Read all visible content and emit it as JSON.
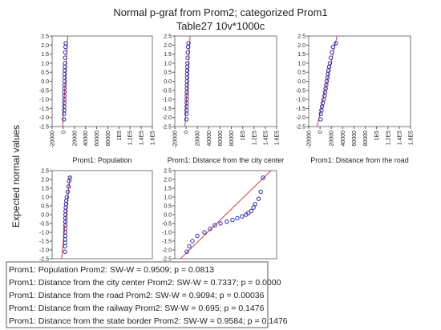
{
  "header": {
    "title": [
      "Normal p-graf from Prom2; categorized Prom1",
      "Table27 10v*1000c"
    ],
    "y_label": "Expected normal values"
  },
  "legend_box": {
    "lines": [
      "Prom1: Population   Prom2: SW-W = 0.9509; p = 0.0813",
      "Prom1: Distance from the city center   Prom2: SW-W = 0.7337; p = 0.0000",
      "Prom1: Distance from the road   Prom2: SW-W = 0.9094; p = 0.00036",
      "Prom1: Distance from the railway   Prom2: SW-W = 0.695; p = 0.1476",
      "Prom1: Distance from the state border   Prom2: SW-W = 0.9584; p = 0.1476"
    ]
  },
  "chart_data": [
    {
      "type": "scatter",
      "title": "Prom1: Population",
      "point_color": "#2a2aa8",
      "line_color": "#d04040",
      "x": [
        1200,
        1500,
        1700,
        1800,
        1900,
        2000,
        2100,
        2200,
        2300,
        2400,
        2500,
        2600,
        2700,
        2800,
        2900,
        3100,
        3300,
        3600,
        4000,
        4500
      ],
      "y": [
        -2.1,
        -1.8,
        -1.6,
        -1.4,
        -1.2,
        -1.0,
        -0.8,
        -0.6,
        -0.4,
        -0.2,
        0,
        0.2,
        0.4,
        0.6,
        0.8,
        1.0,
        1.3,
        1.6,
        1.9,
        2.1
      ],
      "fit": {
        "x": [
          -1000,
          8000
        ],
        "y": [
          -2.5,
          2.5
        ]
      },
      "xlim": [
        -20000,
        160000
      ],
      "ylim": [
        -2.5,
        2.5
      ],
      "xticks": [
        -20000,
        0,
        20000,
        40000,
        60000,
        80000,
        {
          "value": 100000,
          "label": "1E5"
        },
        {
          "value": 120000,
          "label": "1.2E5"
        },
        {
          "value": 140000,
          "label": "1.4E5"
        },
        {
          "value": 160000,
          "label": "1.6E5"
        }
      ],
      "yticks": [
        2.5,
        {
          "value": 2,
          "label": "2.0"
        },
        1.5,
        {
          "value": 1,
          "label": "1.0"
        },
        0.5,
        {
          "value": 0,
          "label": "0.0"
        },
        -0.5,
        {
          "value": -1,
          "label": "-1.0"
        },
        -1.5,
        {
          "value": -2,
          "label": "-2.0"
        },
        -2.5
      ]
    },
    {
      "type": "scatter",
      "title": "Prom1: Distance from the city center",
      "point_color": "#2a2aa8",
      "line_color": "#d04040",
      "x": [
        500,
        700,
        800,
        900,
        1000,
        1100,
        1200,
        1300,
        1400,
        1500,
        1600,
        1700,
        1800,
        2000,
        2200,
        2400,
        2700,
        3100,
        3600,
        4200
      ],
      "y": [
        -2.1,
        -1.8,
        -1.6,
        -1.4,
        -1.2,
        -1.0,
        -0.8,
        -0.6,
        -0.4,
        -0.2,
        0,
        0.2,
        0.4,
        0.6,
        0.8,
        1.0,
        1.3,
        1.6,
        1.9,
        2.1
      ],
      "fit": {
        "x": [
          -2000,
          7000
        ],
        "y": [
          -2.5,
          2.5
        ]
      },
      "xlim": [
        -20000,
        160000
      ],
      "ylim": [
        -2.5,
        2.5
      ],
      "xticks": [
        -20000,
        0,
        20000,
        40000,
        60000,
        80000,
        {
          "value": 100000,
          "label": "1E5"
        },
        {
          "value": 120000,
          "label": "1.2E5"
        },
        {
          "value": 140000,
          "label": "1.4E5"
        },
        {
          "value": 160000,
          "label": "1.6E5"
        }
      ],
      "yticks": [
        2.5,
        {
          "value": 2,
          "label": "2.0"
        },
        1.5,
        {
          "value": 1,
          "label": "1.0"
        },
        0.5,
        {
          "value": 0,
          "label": "0.0"
        },
        -0.5,
        {
          "value": -1,
          "label": "-1.0"
        },
        -1.5,
        {
          "value": -2,
          "label": "-2.0"
        },
        -2.5
      ]
    },
    {
      "type": "scatter",
      "title": "Prom1: Distance from the road",
      "point_color": "#2a2aa8",
      "line_color": "#d04040",
      "x": [
        1000,
        1500,
        2500,
        3500,
        5000,
        6500,
        8000,
        9000,
        10000,
        11000,
        12000,
        13000,
        14000,
        15000,
        16000,
        17500,
        19000,
        21000,
        23000,
        28000
      ],
      "y": [
        -2.1,
        -1.8,
        -1.6,
        -1.4,
        -1.2,
        -1.0,
        -0.8,
        -0.6,
        -0.4,
        -0.2,
        0,
        0.2,
        0.4,
        0.6,
        0.8,
        1.0,
        1.3,
        1.6,
        1.9,
        2.1
      ],
      "fit": {
        "x": [
          -5000,
          30000
        ],
        "y": [
          -2.5,
          2.5
        ]
      },
      "xlim": [
        -20000,
        160000
      ],
      "ylim": [
        -2.5,
        2.5
      ],
      "xticks": [
        -20000,
        0,
        20000,
        40000,
        60000,
        80000,
        {
          "value": 100000,
          "label": "1E5"
        },
        {
          "value": 120000,
          "label": "1.2E5"
        },
        {
          "value": 140000,
          "label": "1.4E5"
        },
        {
          "value": 160000,
          "label": "1.6E5"
        }
      ],
      "yticks": [
        2.5,
        {
          "value": 2,
          "label": "2.0"
        },
        1.5,
        {
          "value": 1,
          "label": "1.0"
        },
        0.5,
        {
          "value": 0,
          "label": "0.0"
        },
        -0.5,
        {
          "value": -1,
          "label": "-1.0"
        },
        -1.5,
        {
          "value": -2,
          "label": "-2.0"
        },
        -2.5
      ]
    },
    {
      "type": "scatter",
      "point_color": "#2a2aa8",
      "line_color": "#d04040",
      "x": [
        3000,
        3200,
        3300,
        3400,
        3500,
        3500,
        3600,
        3700,
        3800,
        3900,
        4000,
        4200,
        4500,
        5000,
        5500,
        6500,
        8000,
        9500,
        10500,
        12000
      ],
      "y": [
        -2.1,
        -1.8,
        -1.6,
        -1.4,
        -1.2,
        -1.0,
        -0.8,
        -0.6,
        -0.4,
        -0.2,
        0,
        0.2,
        0.4,
        0.6,
        0.8,
        1.0,
        1.3,
        1.6,
        1.9,
        2.1
      ],
      "fit": {
        "x": [
          -3000,
          12000
        ],
        "y": [
          -2.5,
          2.2
        ]
      },
      "xlim": [
        -20000,
        160000
      ],
      "ylim": [
        -2.5,
        2.5
      ],
      "yticks": [
        2.5,
        {
          "value": 2,
          "label": "2.0"
        },
        1.5,
        {
          "value": 1,
          "label": "1.0"
        },
        0.5,
        {
          "value": 0,
          "label": "0.0"
        },
        -0.5,
        {
          "value": -1,
          "label": "-1.0"
        },
        -1.5,
        {
          "value": -2,
          "label": "-2.0"
        },
        -2.5
      ]
    },
    {
      "type": "scatter",
      "point_color": "#2a2aa8",
      "line_color": "#d04040",
      "x": [
        1260,
        5500,
        11200,
        19700,
        32400,
        42400,
        50900,
        60800,
        72100,
        82000,
        90500,
        99000,
        106000,
        110000,
        115000,
        119000,
        122000,
        128000,
        132000,
        136000
      ],
      "y": [
        -2.1,
        -1.8,
        -1.5,
        -1.2,
        -1.0,
        -0.8,
        -0.6,
        -0.5,
        -0.4,
        -0.3,
        -0.2,
        -0.1,
        0,
        0.1,
        0.2,
        0.4,
        0.6,
        0.9,
        1.3,
        2.1
      ],
      "fit": {
        "x": [
          -10000,
          150000
        ],
        "y": [
          -2.5,
          2.5
        ]
      },
      "xlim": [
        -20000,
        160000
      ],
      "ylim": [
        -2.5,
        2.5
      ],
      "yticks": [
        2.5,
        {
          "value": 2,
          "label": "2.0"
        },
        1.5,
        {
          "value": 1,
          "label": "1.0"
        },
        0.5,
        {
          "value": 0,
          "label": "0.0"
        },
        -0.5,
        {
          "value": -1,
          "label": "-1.0"
        },
        -1.5,
        {
          "value": -2,
          "label": "-2.0"
        },
        -2.5
      ]
    }
  ]
}
